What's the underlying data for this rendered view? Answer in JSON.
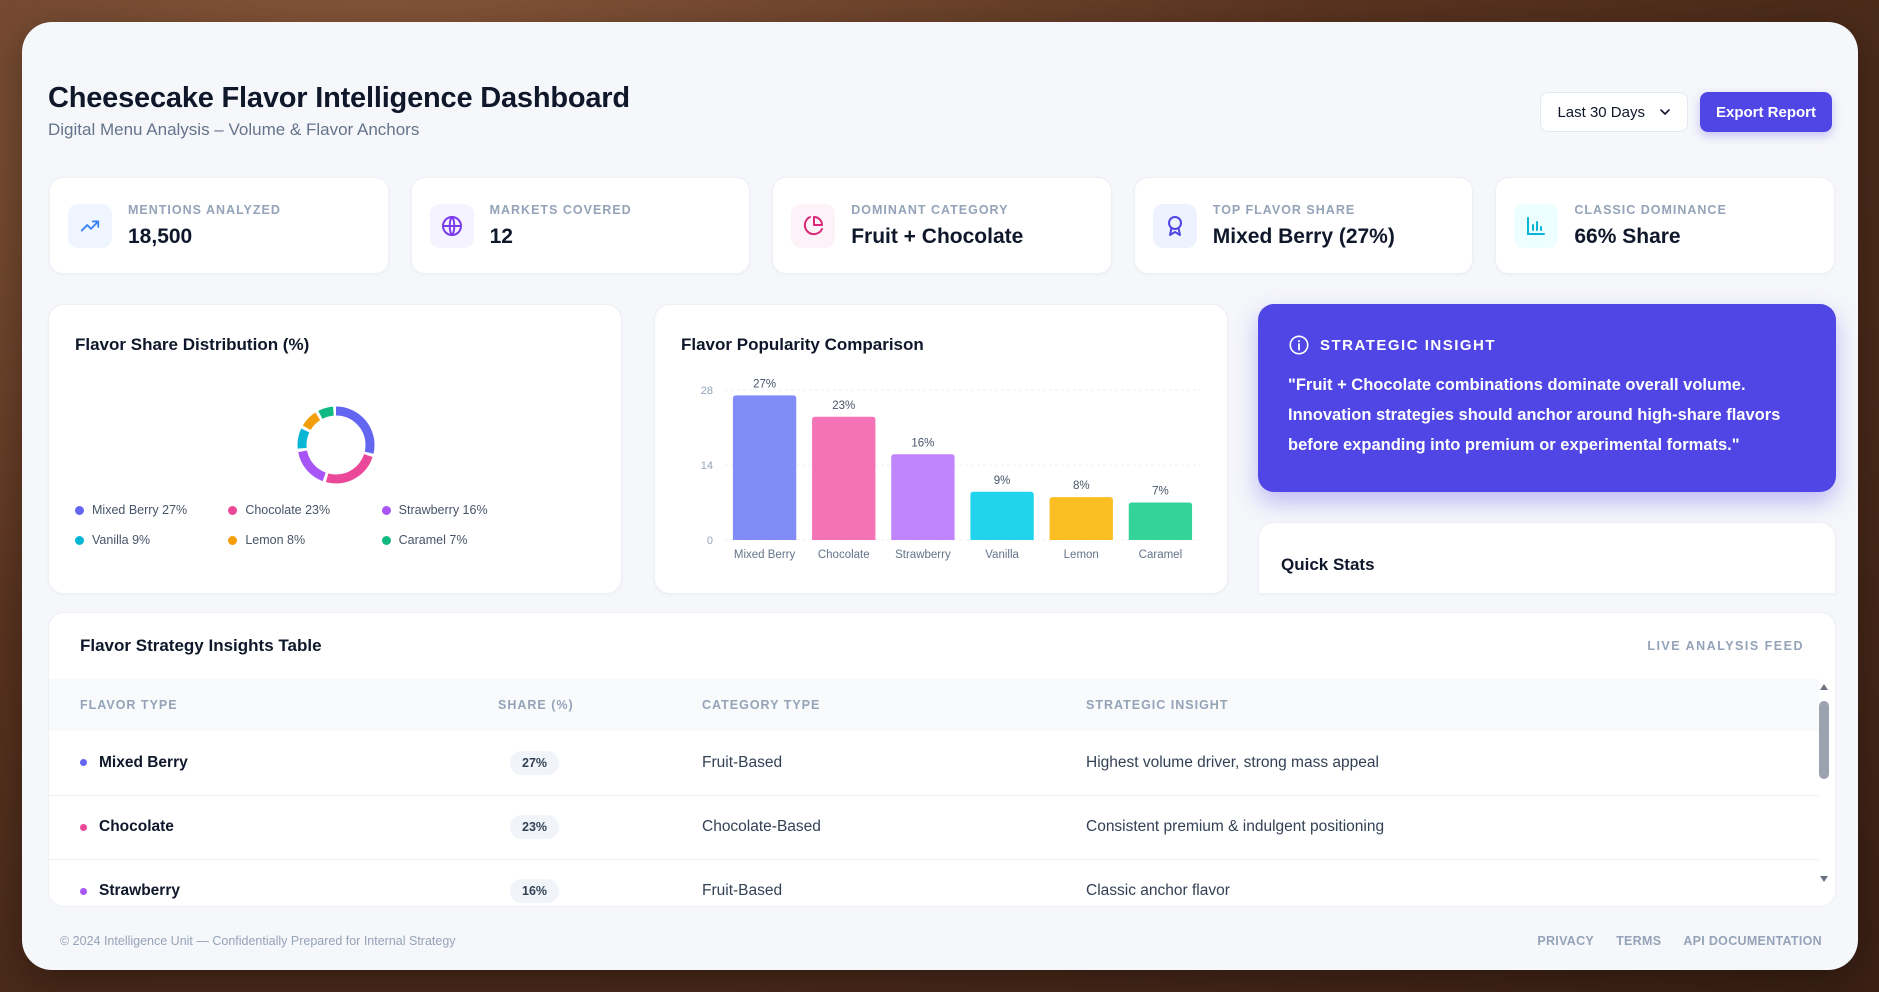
{
  "header": {
    "title": "Cheesecake Flavor Intelligence Dashboard",
    "subtitle": "Digital Menu Analysis – Volume & Flavor Anchors",
    "range_label": "Last 30 Days",
    "export_label": "Export Report"
  },
  "kpis": [
    {
      "label": "MENTIONS ANALYZED",
      "value": "18,500",
      "icon": "trending-up-icon",
      "color": "#3b82f6",
      "bg": "#eff6ff"
    },
    {
      "label": "MARKETS COVERED",
      "value": "12",
      "icon": "globe-icon",
      "color": "#7c3aed",
      "bg": "#f5f3ff"
    },
    {
      "label": "DOMINANT CATEGORY",
      "value": "Fruit + Chocolate",
      "icon": "pie-chart-icon",
      "color": "#db2777",
      "bg": "#fdf2f8"
    },
    {
      "label": "TOP FLAVOR SHARE",
      "value": "Mixed Berry (27%)",
      "icon": "award-icon",
      "color": "#4f46e5",
      "bg": "#eef2ff"
    },
    {
      "label": "CLASSIC DOMINANCE",
      "value": "66% Share",
      "icon": "bar-chart-icon",
      "color": "#06b6d4",
      "bg": "#ecfeff"
    }
  ],
  "donut_panel": {
    "title": "Flavor Share Distribution (%)",
    "legend": [
      {
        "label": "Mixed Berry 27%",
        "color": "#6366f1"
      },
      {
        "label": "Chocolate 23%",
        "color": "#ec4899"
      },
      {
        "label": "Strawberry 16%",
        "color": "#a855f7"
      },
      {
        "label": "Vanilla 9%",
        "color": "#06b6d4"
      },
      {
        "label": "Lemon 8%",
        "color": "#f59e0b"
      },
      {
        "label": "Caramel 7%",
        "color": "#10b981"
      }
    ]
  },
  "bar_panel": {
    "title": "Flavor Popularity Comparison"
  },
  "chart_data": [
    {
      "type": "pie",
      "title": "Flavor Share Distribution (%)",
      "categories": [
        "Mixed Berry",
        "Chocolate",
        "Strawberry",
        "Vanilla",
        "Lemon",
        "Caramel"
      ],
      "values": [
        27,
        23,
        16,
        9,
        8,
        7
      ],
      "colors": [
        "#6366f1",
        "#ec4899",
        "#a855f7",
        "#06b6d4",
        "#f59e0b",
        "#10b981"
      ],
      "legend_position": "bottom"
    },
    {
      "type": "bar",
      "title": "Flavor Popularity Comparison",
      "categories": [
        "Mixed Berry",
        "Chocolate",
        "Strawberry",
        "Vanilla",
        "Lemon",
        "Caramel"
      ],
      "values": [
        27,
        23,
        16,
        9,
        8,
        7
      ],
      "data_labels": [
        "27%",
        "23%",
        "16%",
        "9%",
        "8%",
        "7%"
      ],
      "colors": [
        "#818cf8",
        "#f472b6",
        "#c084fc",
        "#22d3ee",
        "#fbbf24",
        "#34d399"
      ],
      "yticks": [
        "28",
        "14",
        "0"
      ],
      "ylim": [
        0,
        28
      ],
      "grid": true
    }
  ],
  "insight": {
    "heading": "STRATEGIC INSIGHT",
    "text": "\"Fruit + Chocolate combinations dominate overall volume. Innovation strategies should anchor around high-share flavors before expanding into premium or experimental formats.\""
  },
  "quick_stats": {
    "title": "Quick Stats"
  },
  "table": {
    "title": "Flavor Strategy Insights Table",
    "feed_label": "LIVE ANALYSIS FEED",
    "columns": [
      "FLAVOR TYPE",
      "SHARE (%)",
      "CATEGORY TYPE",
      "STRATEGIC INSIGHT"
    ],
    "rows": [
      {
        "flavor": "Mixed Berry",
        "share": "27%",
        "category": "Fruit-Based",
        "insight": "Highest volume driver, strong mass appeal",
        "color": "#6366f1"
      },
      {
        "flavor": "Chocolate",
        "share": "23%",
        "category": "Chocolate-Based",
        "insight": "Consistent premium & indulgent positioning",
        "color": "#ec4899"
      },
      {
        "flavor": "Strawberry",
        "share": "16%",
        "category": "Fruit-Based",
        "insight": "Classic anchor flavor",
        "color": "#a855f7"
      }
    ]
  },
  "footer": {
    "copyright": "© 2024 Intelligence Unit — Confidentially Prepared for Internal Strategy",
    "links": [
      "PRIVACY",
      "TERMS",
      "API DOCUMENTATION"
    ]
  }
}
